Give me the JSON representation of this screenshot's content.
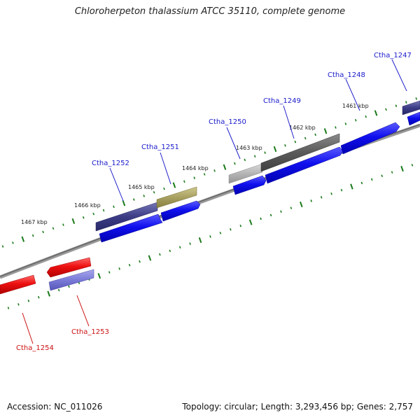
{
  "title": "Chloroherpeton thalassium ATCC 35110, complete genome",
  "accession": "Accession: NC_011026",
  "summary": "Topology: circular; Length: 3,293,456 bp; Genes: 2,757",
  "colors": {
    "forward_label": "#1a1acc",
    "reverse_label": "#cc1111",
    "forward_cds": "#1010ee",
    "reverse_cds": "#ee1111",
    "tick": "#1a7a1a",
    "backbone": "#777777"
  },
  "kbp_labels": [
    "1467 kbp",
    "1466 kbp",
    "1465 kbp",
    "1464 kbp",
    "1463 kbp",
    "1462 kbp",
    "1461 kbp"
  ],
  "gene_labels": [
    {
      "text": "Ctha_1247",
      "strand": "forward"
    },
    {
      "text": "Ctha_1248",
      "strand": "forward"
    },
    {
      "text": "Ctha_1249",
      "strand": "forward"
    },
    {
      "text": "Ctha_1250",
      "strand": "forward"
    },
    {
      "text": "Ctha_1251",
      "strand": "forward"
    },
    {
      "text": "Ctha_1252",
      "strand": "forward"
    },
    {
      "text": "Ctha_1253",
      "strand": "reverse"
    },
    {
      "text": "Ctha_1254",
      "strand": "reverse"
    }
  ]
}
